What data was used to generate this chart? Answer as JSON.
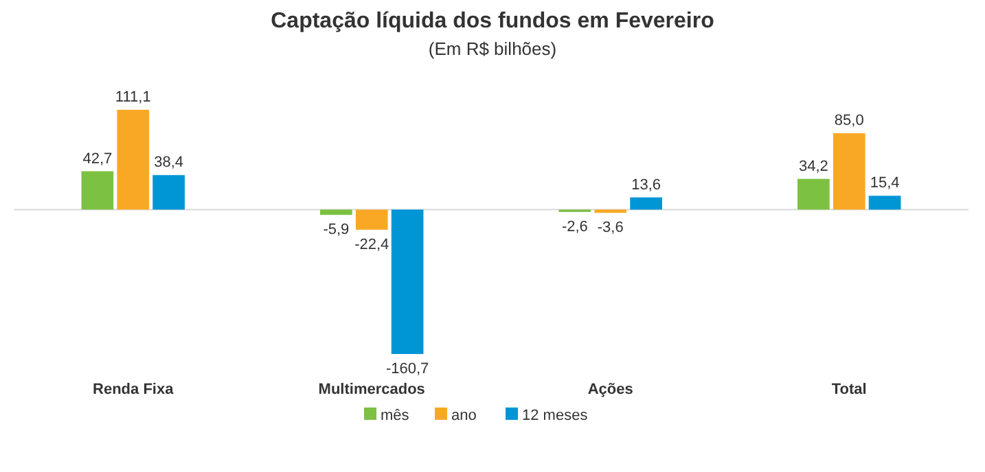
{
  "chart_data": {
    "type": "bar",
    "title": "Captação líquida dos fundos em Fevereiro",
    "subtitle": "(Em R$ bilhões)",
    "categories": [
      "Renda Fixa",
      "Multimercados",
      "Ações",
      "Total"
    ],
    "series": [
      {
        "name": "mês",
        "color": "#7dc142",
        "values": [
          42.7,
          -5.9,
          -2.6,
          34.2
        ],
        "value_labels": [
          "42,7",
          "-5,9",
          "-2,6",
          "34,2"
        ]
      },
      {
        "name": "ano",
        "color": "#f9a825",
        "values": [
          111.1,
          -22.4,
          -3.6,
          85.0
        ],
        "value_labels": [
          "111,1",
          "-22,4",
          "-3,6",
          "85,0"
        ]
      },
      {
        "name": "12 meses",
        "color": "#0096d6",
        "values": [
          38.4,
          -160.7,
          13.6,
          15.4
        ],
        "value_labels": [
          "38,4",
          "-160,7",
          "13,6",
          "15,4"
        ]
      }
    ],
    "legend": "bottom"
  }
}
